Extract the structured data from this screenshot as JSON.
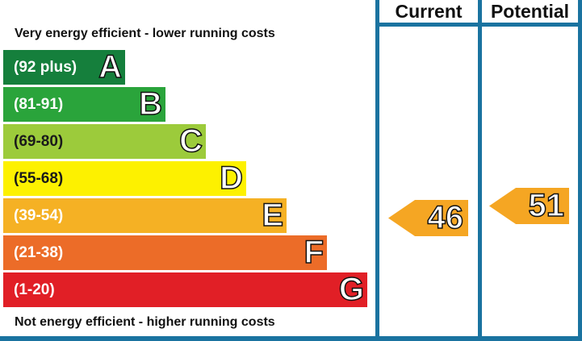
{
  "header": {
    "current_label": "Current",
    "potential_label": "Potential"
  },
  "captions": {
    "top": "Very energy efficient - lower running costs",
    "bottom": "Not energy efficient - higher running costs"
  },
  "chart_data": {
    "type": "bar",
    "bands": [
      {
        "letter": "A",
        "range": "(92 plus)",
        "min": 92,
        "max": null,
        "color": "#157f3c"
      },
      {
        "letter": "B",
        "range": "(81-91)",
        "min": 81,
        "max": 91,
        "color": "#2aa43b"
      },
      {
        "letter": "C",
        "range": "(69-80)",
        "min": 69,
        "max": 80,
        "color": "#9ccb3b"
      },
      {
        "letter": "D",
        "range": "(55-68)",
        "min": 55,
        "max": 68,
        "color": "#fdf100"
      },
      {
        "letter": "E",
        "range": "(39-54)",
        "min": 39,
        "max": 54,
        "color": "#f5b124"
      },
      {
        "letter": "F",
        "range": "(21-38)",
        "min": 21,
        "max": 38,
        "color": "#ec6c28"
      },
      {
        "letter": "G",
        "range": "(1-20)",
        "min": 1,
        "max": 20,
        "color": "#e11f26"
      }
    ],
    "ratings": {
      "current": {
        "value": 46,
        "band": "E"
      },
      "potential": {
        "value": 51,
        "band": "E"
      }
    },
    "arrow_color": "#f5a623",
    "frame_color": "#1a73a0"
  }
}
